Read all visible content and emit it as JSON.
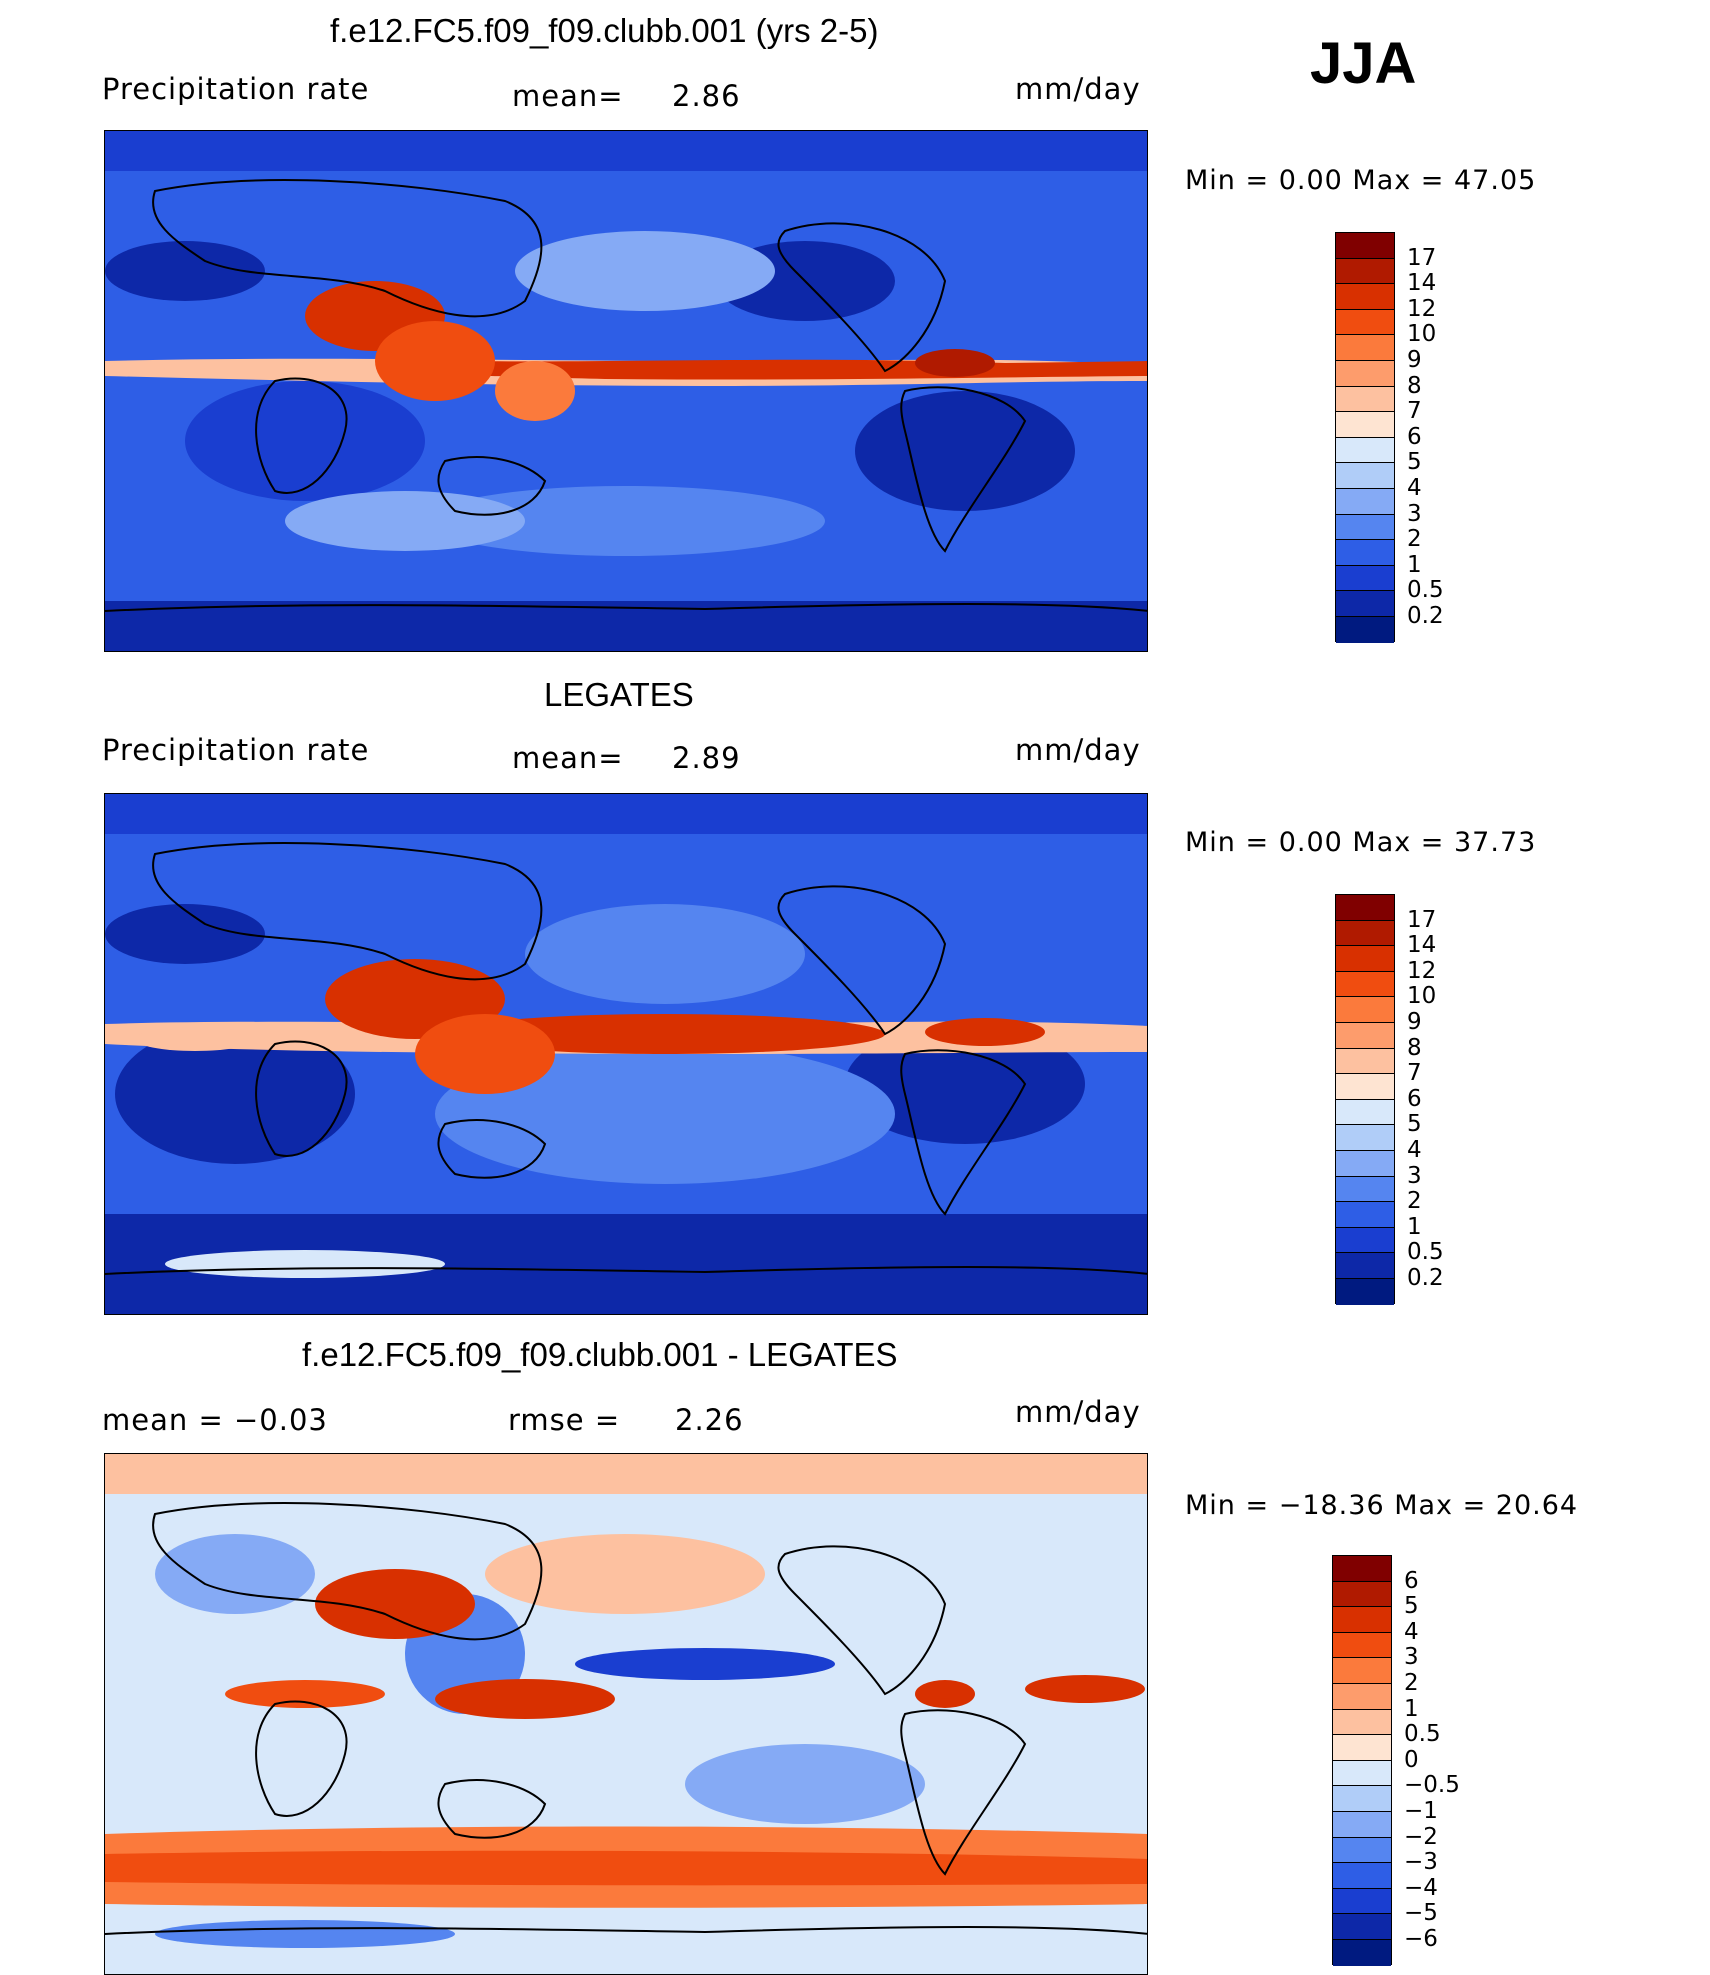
{
  "season": "JJA",
  "panels": [
    {
      "title": "f.e12.FC5.f09_f09.clubb.001 (yrs 2-5)",
      "left_label": "Precipitation  rate",
      "center_label": "mean=",
      "center_value": "2.86",
      "units": "mm/day",
      "minmax": "Min  =      0.00  Max  =     47.05"
    },
    {
      "title": "LEGATES",
      "left_label": "Precipitation  rate",
      "center_label": "mean=",
      "center_value": "2.89",
      "units": "mm/day",
      "minmax": "Min  =      0.00  Max  =     37.73"
    },
    {
      "title": "f.e12.FC5.f09_f09.clubb.001 - LEGATES",
      "left_label": "mean  =    −0.03",
      "center_label": "rmse  =",
      "center_value": "2.26",
      "units": "mm/day",
      "minmax": "Min  = −18.36  Max  =     20.64"
    }
  ],
  "chart_data": [
    {
      "type": "heatmap",
      "title": "f.e12.FC5.f09_f09.clubb.001 (yrs 2-5)",
      "variable": "Precipitation rate",
      "units": "mm/day",
      "mean": 2.86,
      "min": 0.0,
      "max": 47.05,
      "colorbar_levels": [
        "17",
        "14",
        "12",
        "10",
        "9",
        "8",
        "7",
        "6",
        "5",
        "4",
        "3",
        "2",
        "1",
        "0.5",
        "0.2"
      ],
      "colorbar_colors": [
        "#800000",
        "#b01a00",
        "#d83000",
        "#f04d10",
        "#fb7a3c",
        "#fd9c6c",
        "#fdc1a0",
        "#fee4d2",
        "#d8e8fa",
        "#b0cdf8",
        "#85aaf5",
        "#5585f0",
        "#2e5ee6",
        "#1a3ed0",
        "#0d28a8",
        "#001a80"
      ]
    },
    {
      "type": "heatmap",
      "title": "LEGATES",
      "variable": "Precipitation rate",
      "units": "mm/day",
      "mean": 2.89,
      "min": 0.0,
      "max": 37.73,
      "colorbar_levels": [
        "17",
        "14",
        "12",
        "10",
        "9",
        "8",
        "7",
        "6",
        "5",
        "4",
        "3",
        "2",
        "1",
        "0.5",
        "0.2"
      ],
      "colorbar_colors": [
        "#800000",
        "#b01a00",
        "#d83000",
        "#f04d10",
        "#fb7a3c",
        "#fd9c6c",
        "#fdc1a0",
        "#fee4d2",
        "#d8e8fa",
        "#b0cdf8",
        "#85aaf5",
        "#5585f0",
        "#2e5ee6",
        "#1a3ed0",
        "#0d28a8",
        "#001a80"
      ]
    },
    {
      "type": "heatmap",
      "title": "f.e12.FC5.f09_f09.clubb.001 - LEGATES",
      "units": "mm/day",
      "mean": -0.03,
      "rmse": 2.26,
      "min": -18.36,
      "max": 20.64,
      "colorbar_levels": [
        "6",
        "5",
        "4",
        "3",
        "2",
        "1",
        "0.5",
        "0",
        "−0.5",
        "−1",
        "−2",
        "−3",
        "−4",
        "−5",
        "−6"
      ],
      "colorbar_colors": [
        "#800000",
        "#b01a00",
        "#d83000",
        "#f04d10",
        "#fb7a3c",
        "#fd9c6c",
        "#fdc1a0",
        "#fee4d2",
        "#d8e8fa",
        "#b0cdf8",
        "#85aaf5",
        "#5585f0",
        "#2e5ee6",
        "#1a3ed0",
        "#0d28a8",
        "#001a80"
      ]
    }
  ]
}
